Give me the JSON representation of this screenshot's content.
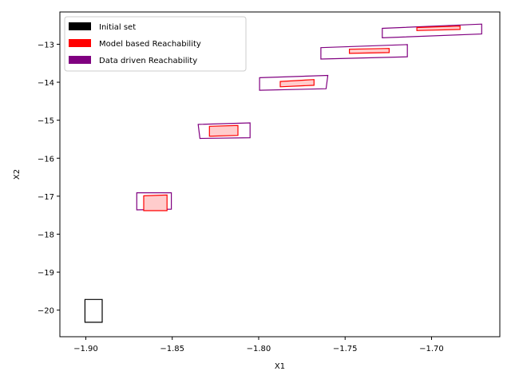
{
  "chart_data": {
    "type": "scatter",
    "title": "",
    "xlabel": "X1",
    "ylabel": "X2",
    "xlim": [
      -1.915,
      -1.6605
    ],
    "ylim": [
      -20.7,
      -12.15
    ],
    "xticks": [
      -1.9,
      -1.85,
      -1.8,
      -1.75,
      -1.7
    ],
    "xtick_labels": [
      "−1.90",
      "−1.85",
      "−1.80",
      "−1.75",
      "−1.70"
    ],
    "yticks": [
      -13,
      -14,
      -15,
      -16,
      -17,
      -18,
      -19,
      -20
    ],
    "ytick_labels": [
      "−13",
      "−14",
      "−15",
      "−16",
      "−17",
      "−18",
      "−19",
      "−20"
    ],
    "grid": false,
    "legend_position": "top-left",
    "legend": [
      {
        "name": "Initial set",
        "color": "#000000"
      },
      {
        "name": "Model based Reachability",
        "color": "#ff0000"
      },
      {
        "name": "Data driven Reachability",
        "color": "#800080"
      }
    ],
    "series": [
      {
        "name": "Initial set",
        "edge_color": "#000000",
        "fill_color": "none",
        "polygons": [
          [
            [
              -1.9005,
              -19.72
            ],
            [
              -1.8905,
              -19.72
            ],
            [
              -1.8905,
              -20.32
            ],
            [
              -1.9005,
              -20.32
            ]
          ]
        ]
      },
      {
        "name": "Data driven Reachability",
        "edge_color": "#800080",
        "fill_color": "none",
        "polygons": [
          [
            [
              -1.8705,
              -16.91
            ],
            [
              -1.8505,
              -16.91
            ],
            [
              -1.8505,
              -17.34
            ],
            [
              -1.8705,
              -17.36
            ]
          ],
          [
            [
              -1.835,
              -15.11
            ],
            [
              -1.805,
              -15.07
            ],
            [
              -1.805,
              -15.46
            ],
            [
              -1.834,
              -15.48
            ]
          ],
          [
            [
              -1.7995,
              -13.88
            ],
            [
              -1.76,
              -13.82
            ],
            [
              -1.761,
              -14.17
            ],
            [
              -1.7995,
              -14.21
            ]
          ],
          [
            [
              -1.764,
              -13.09
            ],
            [
              -1.714,
              -13.01
            ],
            [
              -1.714,
              -13.33
            ],
            [
              -1.764,
              -13.39
            ]
          ],
          [
            [
              -1.7285,
              -12.58
            ],
            [
              -1.671,
              -12.47
            ],
            [
              -1.671,
              -12.73
            ],
            [
              -1.7285,
              -12.83
            ]
          ]
        ]
      },
      {
        "name": "Model based Reachability",
        "edge_color": "#ff0000",
        "fill_color": "#ffcccc",
        "polygons": [
          [
            [
              -1.8665,
              -16.99
            ],
            [
              -1.853,
              -16.97
            ],
            [
              -1.853,
              -17.38
            ],
            [
              -1.8665,
              -17.38
            ]
          ],
          [
            [
              -1.8285,
              -15.16
            ],
            [
              -1.812,
              -15.14
            ],
            [
              -1.812,
              -15.4
            ],
            [
              -1.8285,
              -15.42
            ]
          ],
          [
            [
              -1.7875,
              -13.98
            ],
            [
              -1.768,
              -13.93
            ],
            [
              -1.768,
              -14.08
            ],
            [
              -1.7875,
              -14.12
            ]
          ],
          [
            [
              -1.7475,
              -13.13
            ],
            [
              -1.7245,
              -13.11
            ],
            [
              -1.7245,
              -13.22
            ],
            [
              -1.7475,
              -13.24
            ]
          ],
          [
            [
              -1.7085,
              -12.56
            ],
            [
              -1.6835,
              -12.52
            ],
            [
              -1.6835,
              -12.61
            ],
            [
              -1.7085,
              -12.64
            ]
          ]
        ]
      }
    ]
  }
}
